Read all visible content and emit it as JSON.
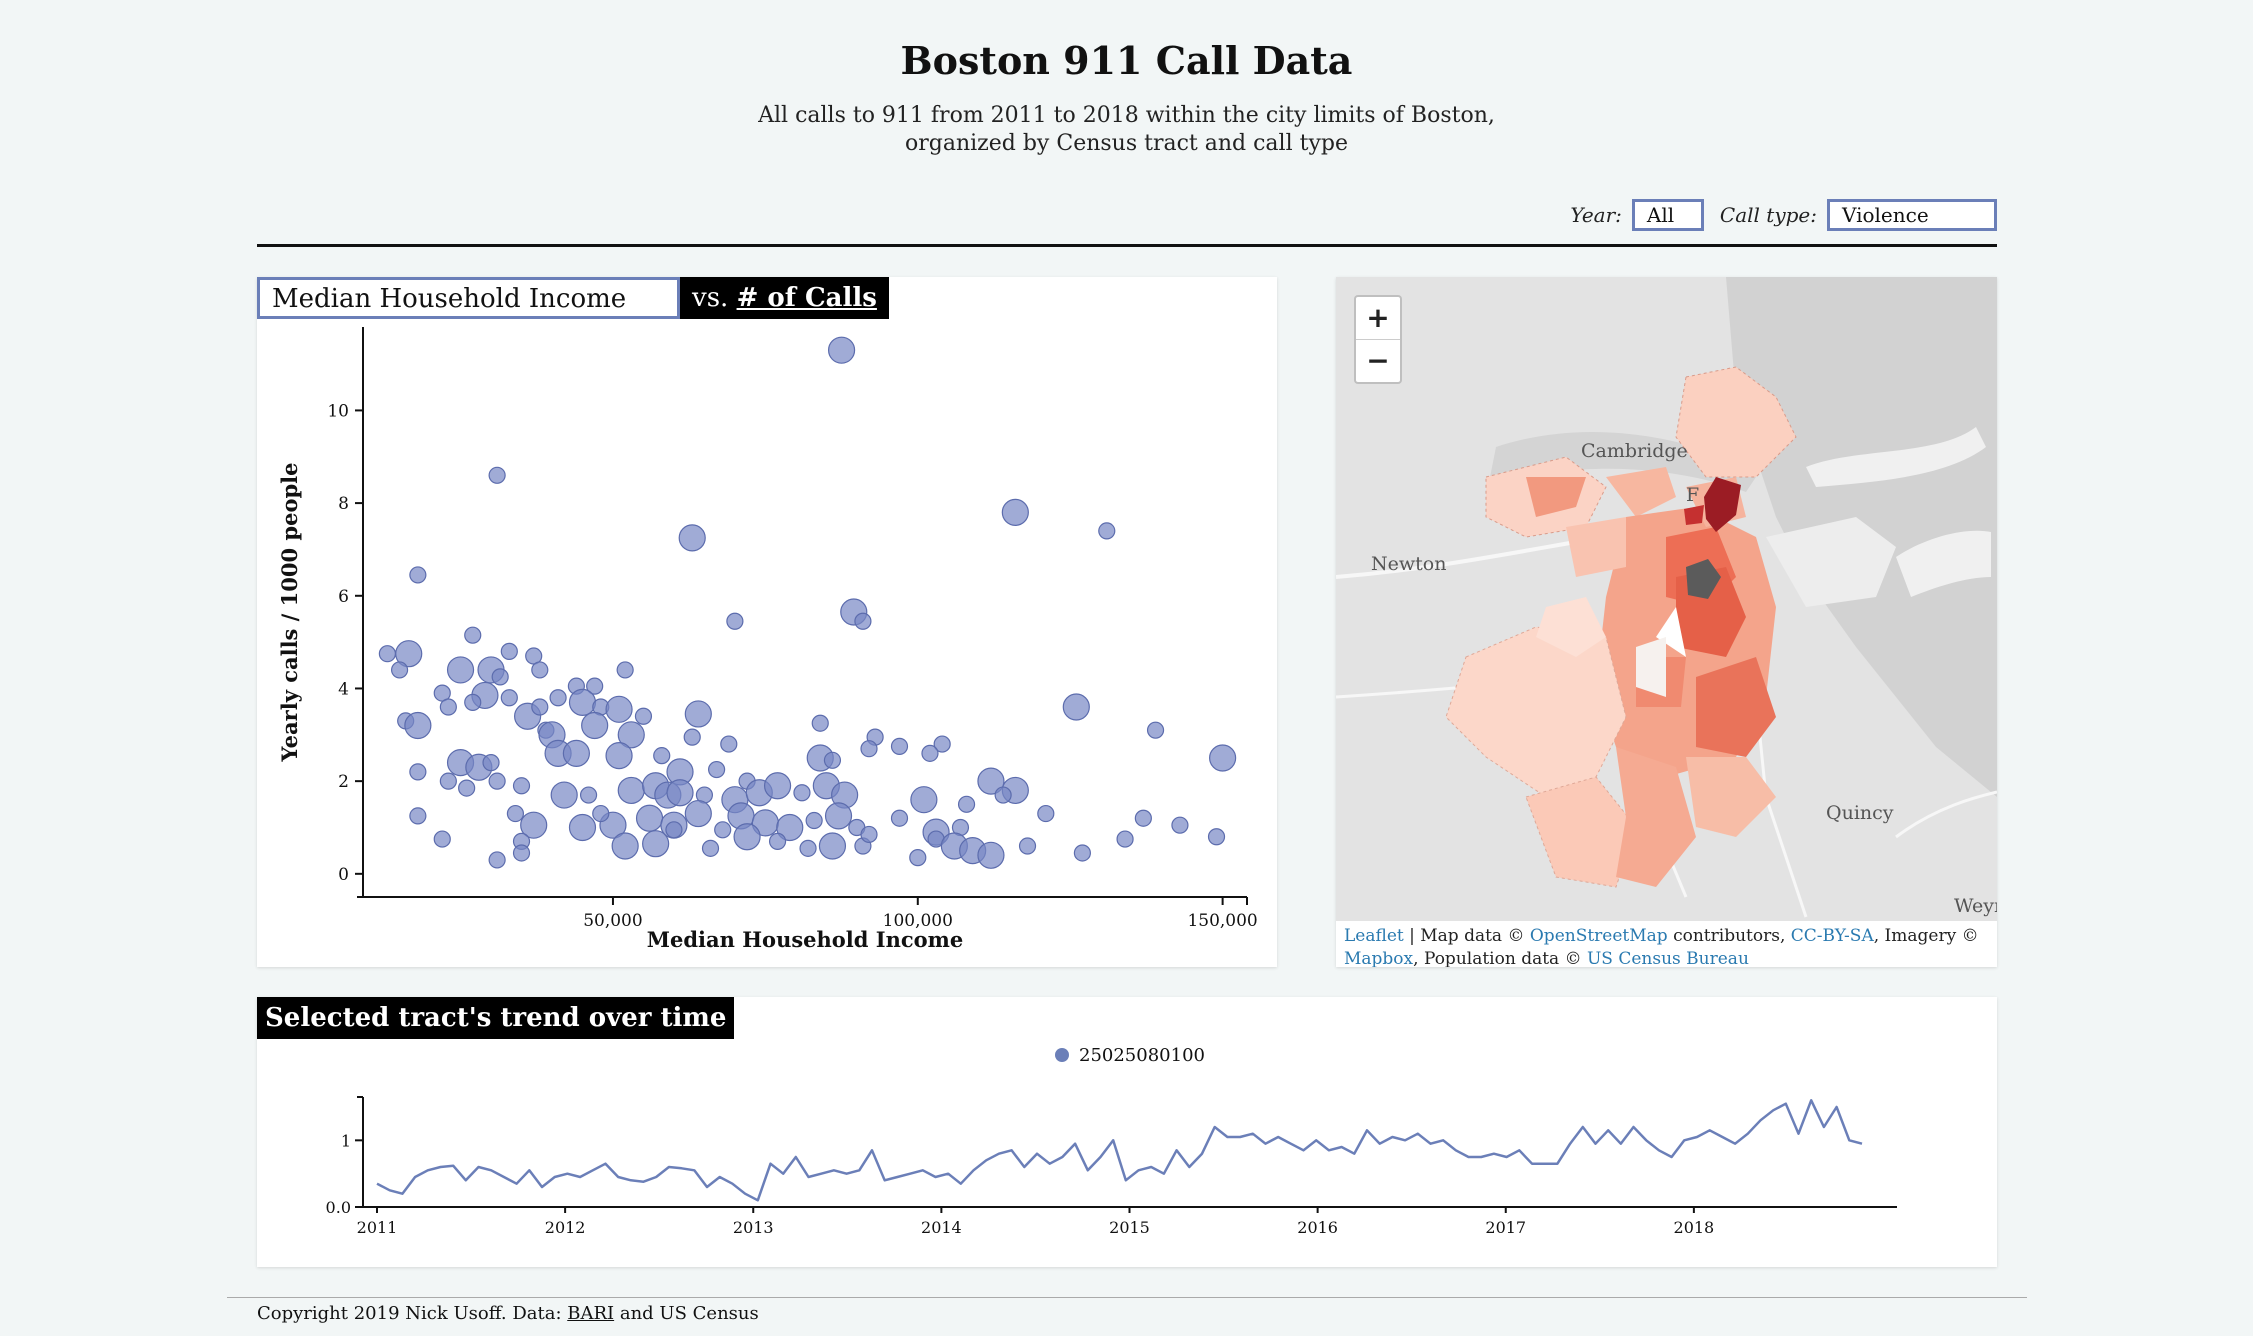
{
  "header": {
    "title": "Boston 911 Call Data",
    "subtitle_line1": "All calls to 911 from 2011 to 2018 within the city limits of Boston,",
    "subtitle_line2": "organized by Census tract and call type"
  },
  "controls": {
    "year_label": "Year:",
    "year_value": "All",
    "call_type_label": "Call type:",
    "call_type_value": "Violence"
  },
  "scatter": {
    "metric_select_value": "Median Household Income",
    "vs_prefix": "vs.",
    "vs_suffix": "# of Calls",
    "chart_data": {
      "type": "scatter",
      "title": "Median Household Income vs. # of Calls",
      "xlabel": "Median Household Income",
      "ylabel": "Yearly calls / 1000 people",
      "xlim": [
        9000,
        154000
      ],
      "ylim": [
        -0.5,
        11.8
      ],
      "xticks": [
        "50,000",
        "100,000",
        "150,000"
      ],
      "xtick_values": [
        50000,
        100000,
        150000
      ],
      "yticks": [
        "0",
        "2",
        "4",
        "6",
        "8",
        "10"
      ],
      "ytick_values": [
        0,
        2,
        4,
        6,
        8,
        10
      ],
      "points": [
        [
          87500,
          11.3,
          3
        ],
        [
          31000,
          8.6,
          2
        ],
        [
          116000,
          7.8,
          3
        ],
        [
          131000,
          7.4,
          2
        ],
        [
          63000,
          7.25,
          3
        ],
        [
          18000,
          6.45,
          2
        ],
        [
          89500,
          5.65,
          3
        ],
        [
          91000,
          5.45,
          2
        ],
        [
          70000,
          5.45,
          2
        ],
        [
          27000,
          5.15,
          2
        ],
        [
          37000,
          4.7,
          2
        ],
        [
          33000,
          4.8,
          2
        ],
        [
          13000,
          4.75,
          2
        ],
        [
          16500,
          4.75,
          3
        ],
        [
          15000,
          4.4,
          2
        ],
        [
          25000,
          4.4,
          3
        ],
        [
          30000,
          4.4,
          3
        ],
        [
          31500,
          4.25,
          2
        ],
        [
          44000,
          4.05,
          2
        ],
        [
          47000,
          4.05,
          2
        ],
        [
          52000,
          4.4,
          2
        ],
        [
          38000,
          4.4,
          2
        ],
        [
          22000,
          3.9,
          2
        ],
        [
          29000,
          3.85,
          3
        ],
        [
          33000,
          3.8,
          2
        ],
        [
          41000,
          3.8,
          2
        ],
        [
          45000,
          3.7,
          3
        ],
        [
          48000,
          3.6,
          2
        ],
        [
          23000,
          3.6,
          2
        ],
        [
          27000,
          3.7,
          2
        ],
        [
          36000,
          3.4,
          3
        ],
        [
          38000,
          3.6,
          2
        ],
        [
          51000,
          3.55,
          3
        ],
        [
          55000,
          3.4,
          2
        ],
        [
          64000,
          3.45,
          3
        ],
        [
          16000,
          3.3,
          2
        ],
        [
          18000,
          3.2,
          3
        ],
        [
          39000,
          3.1,
          2
        ],
        [
          40000,
          3.0,
          3
        ],
        [
          47000,
          3.2,
          3
        ],
        [
          53000,
          3.0,
          3
        ],
        [
          63000,
          2.95,
          2
        ],
        [
          84000,
          3.25,
          2
        ],
        [
          93000,
          2.95,
          2
        ],
        [
          97000,
          2.75,
          2
        ],
        [
          104000,
          2.8,
          2
        ],
        [
          126000,
          3.6,
          3
        ],
        [
          139000,
          3.1,
          2
        ],
        [
          25000,
          2.4,
          3
        ],
        [
          28000,
          2.3,
          3
        ],
        [
          30000,
          2.4,
          2
        ],
        [
          31000,
          2.0,
          2
        ],
        [
          41000,
          2.6,
          3
        ],
        [
          44000,
          2.6,
          3
        ],
        [
          51000,
          2.55,
          3
        ],
        [
          58000,
          2.55,
          2
        ],
        [
          61000,
          2.2,
          3
        ],
        [
          67000,
          2.25,
          2
        ],
        [
          72000,
          2.0,
          2
        ],
        [
          69000,
          2.8,
          2
        ],
        [
          84000,
          2.5,
          3
        ],
        [
          86000,
          2.45,
          2
        ],
        [
          92000,
          2.7,
          2
        ],
        [
          102000,
          2.6,
          2
        ],
        [
          112000,
          2.0,
          3
        ],
        [
          116000,
          1.8,
          3
        ],
        [
          150000,
          2.5,
          3
        ],
        [
          18000,
          2.2,
          2
        ],
        [
          23000,
          2.0,
          2
        ],
        [
          26000,
          1.85,
          2
        ],
        [
          35000,
          1.9,
          2
        ],
        [
          42000,
          1.7,
          3
        ],
        [
          46000,
          1.7,
          2
        ],
        [
          53000,
          1.8,
          3
        ],
        [
          57000,
          1.9,
          3
        ],
        [
          59000,
          1.7,
          3
        ],
        [
          61000,
          1.75,
          3
        ],
        [
          65000,
          1.7,
          2
        ],
        [
          70000,
          1.6,
          3
        ],
        [
          74000,
          1.75,
          3
        ],
        [
          77000,
          1.9,
          3
        ],
        [
          81000,
          1.75,
          2
        ],
        [
          85000,
          1.9,
          3
        ],
        [
          88000,
          1.7,
          3
        ],
        [
          101000,
          1.6,
          3
        ],
        [
          108000,
          1.5,
          2
        ],
        [
          114000,
          1.7,
          2
        ],
        [
          18000,
          1.25,
          2
        ],
        [
          34000,
          1.3,
          2
        ],
        [
          37000,
          1.05,
          3
        ],
        [
          45000,
          1.0,
          3
        ],
        [
          50000,
          1.05,
          3
        ],
        [
          56000,
          1.2,
          3
        ],
        [
          60000,
          1.05,
          3
        ],
        [
          64000,
          1.3,
          3
        ],
        [
          68000,
          0.95,
          2
        ],
        [
          71000,
          1.25,
          3
        ],
        [
          75000,
          1.1,
          3
        ],
        [
          79000,
          1.0,
          3
        ],
        [
          83000,
          1.15,
          2
        ],
        [
          87000,
          1.25,
          3
        ],
        [
          90000,
          1.0,
          2
        ],
        [
          97000,
          1.2,
          2
        ],
        [
          103000,
          0.9,
          3
        ],
        [
          107000,
          1.0,
          2
        ],
        [
          121000,
          1.3,
          2
        ],
        [
          137000,
          1.2,
          2
        ],
        [
          143000,
          1.05,
          2
        ],
        [
          22000,
          0.75,
          2
        ],
        [
          35000,
          0.7,
          2
        ],
        [
          52000,
          0.6,
          3
        ],
        [
          57000,
          0.65,
          3
        ],
        [
          66000,
          0.55,
          2
        ],
        [
          72000,
          0.8,
          3
        ],
        [
          77000,
          0.7,
          2
        ],
        [
          82000,
          0.55,
          2
        ],
        [
          86000,
          0.6,
          3
        ],
        [
          91000,
          0.6,
          2
        ],
        [
          100000,
          0.35,
          2
        ],
        [
          103000,
          0.75,
          2
        ],
        [
          106000,
          0.6,
          3
        ],
        [
          109000,
          0.5,
          3
        ],
        [
          112000,
          0.4,
          3
        ],
        [
          118000,
          0.6,
          2
        ],
        [
          127000,
          0.45,
          2
        ],
        [
          134000,
          0.75,
          2
        ],
        [
          149000,
          0.8,
          2
        ],
        [
          31000,
          0.3,
          2
        ],
        [
          35000,
          0.45,
          2
        ],
        [
          92000,
          0.85,
          2
        ],
        [
          60000,
          0.95,
          2
        ],
        [
          48000,
          1.3,
          2
        ]
      ]
    }
  },
  "map": {
    "zoom_in": "+",
    "zoom_out": "−",
    "label_cambridge": "Cambridge",
    "label_newton": "Newton",
    "label_quincy": "Quincy",
    "label_weymouth": "Weyn",
    "label_f": "F",
    "attribution": {
      "leaflet": "Leaflet",
      "sep1": " | Map data © ",
      "osm": "OpenStreetMap",
      "contrib": " contributors, ",
      "ccbysa": "CC-BY-SA",
      "imagery": ", Imagery ©",
      "mapbox": "Mapbox",
      "pop": ", Population data © ",
      "census": "US Census Bureau"
    }
  },
  "trend": {
    "label": "Selected tract's trend over time",
    "legend_entry": "25025080100",
    "chart_data": {
      "type": "line",
      "title": "Selected tract's trend over time",
      "series_name": "25025080100",
      "x_start_year": 2011,
      "x_end_year": 2019,
      "ylim": [
        0,
        1.65
      ],
      "yticks": [
        "0.0",
        "1"
      ],
      "ytick_values": [
        0,
        1
      ],
      "xticks": [
        "2011",
        "2012",
        "2013",
        "2014",
        "2015",
        "2016",
        "2017",
        "2018"
      ],
      "xtick_values": [
        2011,
        2012,
        2013,
        2014,
        2015,
        2016,
        2017,
        2018
      ],
      "values": [
        0.35,
        0.25,
        0.2,
        0.45,
        0.55,
        0.6,
        0.62,
        0.4,
        0.6,
        0.55,
        0.45,
        0.35,
        0.55,
        0.3,
        0.45,
        0.5,
        0.45,
        0.55,
        0.65,
        0.45,
        0.4,
        0.38,
        0.45,
        0.6,
        0.58,
        0.55,
        0.3,
        0.45,
        0.35,
        0.2,
        0.1,
        0.65,
        0.5,
        0.75,
        0.45,
        0.5,
        0.55,
        0.5,
        0.55,
        0.85,
        0.4,
        0.45,
        0.5,
        0.55,
        0.45,
        0.5,
        0.35,
        0.55,
        0.7,
        0.8,
        0.85,
        0.6,
        0.8,
        0.65,
        0.75,
        0.95,
        0.55,
        0.75,
        1.0,
        0.4,
        0.55,
        0.6,
        0.5,
        0.85,
        0.6,
        0.8,
        1.2,
        1.05,
        1.05,
        1.1,
        0.95,
        1.05,
        0.95,
        0.85,
        1.0,
        0.85,
        0.9,
        0.8,
        1.15,
        0.95,
        1.05,
        1.0,
        1.1,
        0.95,
        1.0,
        0.85,
        0.75,
        0.75,
        0.8,
        0.75,
        0.85,
        0.65,
        0.65,
        0.65,
        0.95,
        1.2,
        0.95,
        1.15,
        0.95,
        1.2,
        1.0,
        0.85,
        0.75,
        1.0,
        1.05,
        1.15,
        1.05,
        0.95,
        1.1,
        1.3,
        1.45,
        1.55,
        1.1,
        1.6,
        1.2,
        1.5,
        1.0,
        0.95
      ]
    }
  },
  "footer": {
    "prefix": "Copyright 2019 Nick Usoff. Data: ",
    "bari": "BARI",
    "suffix": " and US Census"
  }
}
